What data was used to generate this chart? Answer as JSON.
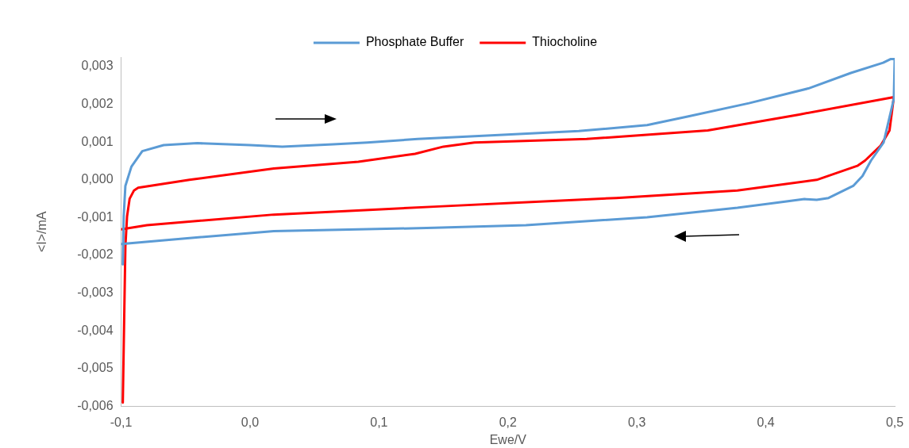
{
  "chart_data": {
    "type": "line",
    "xlabel": "Ewe/V",
    "ylabel": "<I>/mA",
    "series": [
      {
        "name": "Phosphate Buffer",
        "color": "#5b9bd5",
        "x": [
          -0.0987,
          -0.098,
          -0.0967,
          -0.092,
          -0.0836,
          -0.067,
          -0.041,
          0.0,
          0.025,
          0.0645,
          0.091,
          0.13,
          0.19,
          0.255,
          0.308,
          0.34,
          0.387,
          0.433,
          0.466,
          0.491,
          0.497,
          0.5,
          0.4993,
          0.4914,
          0.4816,
          0.475,
          0.4678,
          0.4487,
          0.4395,
          0.43,
          0.378,
          0.308,
          0.214,
          0.143,
          0.0184,
          -0.047,
          -0.1
        ],
        "values": [
          -0.00224,
          -0.00097,
          -0.00016,
          0.00035,
          0.00076,
          0.00092,
          0.00097,
          0.00092,
          0.00088,
          0.00094,
          0.00099,
          0.00108,
          0.00118,
          0.00129,
          0.00145,
          0.00168,
          0.00203,
          0.00242,
          0.00283,
          0.0031,
          0.0032,
          0.0032,
          0.00214,
          0.00099,
          0.00051,
          0.0001,
          -0.00016,
          -0.00048,
          -0.00053,
          -0.00051,
          -0.00074,
          -0.00099,
          -0.0012,
          -0.00127,
          -0.00136,
          -0.00154,
          -0.0017
        ]
      },
      {
        "name": "Thiocholine",
        "color": "#ff0000",
        "x": [
          -0.0987,
          -0.0967,
          -0.0954,
          -0.0934,
          -0.09,
          -0.0868,
          -0.047,
          0.0184,
          0.084,
          0.128,
          0.15,
          0.174,
          0.261,
          0.355,
          0.426,
          0.4993,
          0.496,
          0.489,
          0.477,
          0.471,
          0.4395,
          0.378,
          0.284,
          0.143,
          0.0184,
          -0.08,
          -0.1
        ],
        "values": [
          -0.0059,
          -0.00177,
          -0.00097,
          -0.0005,
          -0.00028,
          -0.00021,
          0.0,
          0.0003,
          0.00048,
          0.00069,
          0.00088,
          0.00099,
          0.00108,
          0.00131,
          0.00173,
          0.00219,
          0.00131,
          0.0009,
          0.00051,
          0.00037,
          0.0,
          -0.00028,
          -0.00048,
          -0.00071,
          -0.00092,
          -0.0012,
          -0.00131
        ]
      }
    ],
    "xlim": [
      -0.1,
      0.5
    ],
    "xticks": [
      {
        "value": -0.1,
        "label": "-0,1"
      },
      {
        "value": 0.0,
        "label": "0,0"
      },
      {
        "value": 0.1,
        "label": "0,1"
      },
      {
        "value": 0.2,
        "label": "0,2"
      },
      {
        "value": 0.3,
        "label": "0,3"
      },
      {
        "value": 0.4,
        "label": "0,4"
      },
      {
        "value": 0.5,
        "label": "0,5"
      }
    ],
    "ylim": [
      -0.006,
      0.00325
    ],
    "yticks": [
      {
        "value": -0.006,
        "label": "-0,006"
      },
      {
        "value": -0.005,
        "label": "-0,005"
      },
      {
        "value": -0.004,
        "label": "-0,004"
      },
      {
        "value": -0.003,
        "label": "-0,003"
      },
      {
        "value": -0.002,
        "label": "-0,002"
      },
      {
        "value": -0.001,
        "label": "-0,001"
      },
      {
        "value": 0.0,
        "label": "0,000"
      },
      {
        "value": 0.001,
        "label": "0,001"
      },
      {
        "value": 0.002,
        "label": "0,002"
      },
      {
        "value": 0.003,
        "label": "0,003"
      }
    ],
    "legend": "top",
    "grid": false,
    "marker": "none",
    "line_style": "solid"
  }
}
